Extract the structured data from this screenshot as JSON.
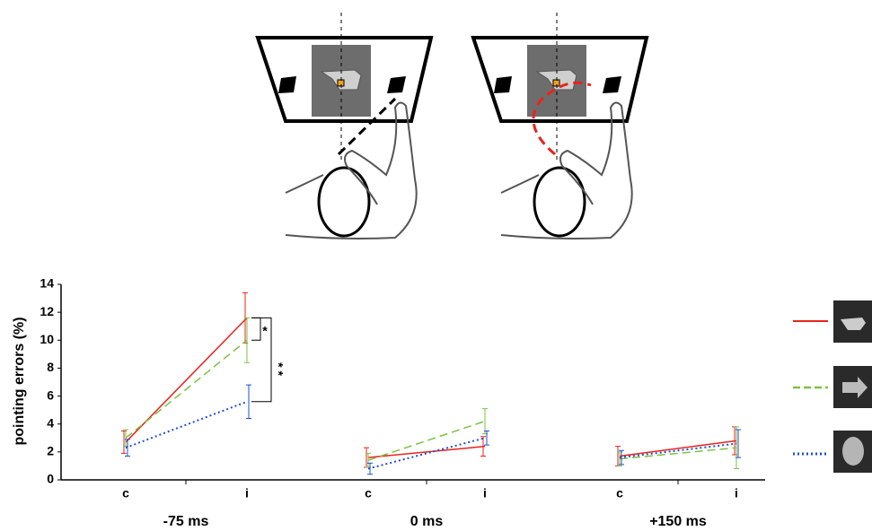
{
  "chart_data": {
    "type": "line",
    "y_label": "pointing errors (%)",
    "groups": [
      "-75 ms",
      "0 ms",
      "+150 ms"
    ],
    "categories": [
      "c",
      "i",
      "c",
      "i",
      "c",
      "i"
    ],
    "ylim": [
      0,
      14
    ],
    "yticks": [
      0,
      2,
      4,
      6,
      8,
      10,
      12,
      14
    ],
    "series": [
      {
        "color": "#e8231b",
        "dash": "solid",
        "values": [
          2.7,
          11.6,
          1.6,
          2.4,
          1.7,
          2.8
        ],
        "errors": [
          0.8,
          1.8,
          0.7,
          0.7,
          0.7,
          1.0
        ]
      },
      {
        "color": "#7cc242",
        "dash": "dashed",
        "values": [
          3.0,
          10.0,
          1.4,
          4.2,
          1.5,
          2.3
        ],
        "errors": [
          0.6,
          1.6,
          0.5,
          0.9,
          0.5,
          1.5
        ]
      },
      {
        "color": "#1f4fd6",
        "dash": "dotted",
        "values": [
          2.3,
          5.6,
          0.8,
          3.0,
          1.6,
          2.6
        ],
        "errors": [
          0.6,
          1.2,
          0.4,
          0.5,
          0.5,
          1.0
        ]
      }
    ],
    "annotations": [
      "*",
      "**"
    ]
  }
}
